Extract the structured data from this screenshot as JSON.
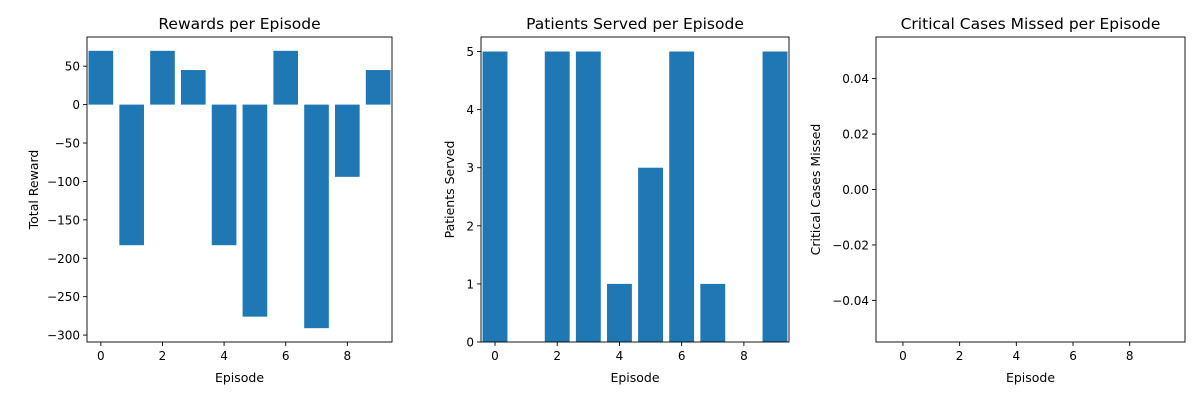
{
  "colors": {
    "bar": "#1f77b4",
    "axis": "#000000",
    "background": "#ffffff"
  },
  "chart_data": [
    {
      "type": "bar",
      "title": "Rewards per Episode",
      "xlabel": "Episode",
      "ylabel": "Total Reward",
      "x": [
        0,
        1,
        2,
        3,
        4,
        5,
        6,
        7,
        8,
        9
      ],
      "values": [
        70,
        -183,
        70,
        45,
        -183,
        -276,
        70,
        -291,
        -94,
        45
      ],
      "xlim": [
        -0.45,
        9.45
      ],
      "ylim": [
        -309,
        88
      ],
      "xticks": [
        0,
        2,
        4,
        6,
        8
      ],
      "yticks": [
        50,
        0,
        -50,
        -100,
        -150,
        -200,
        -250,
        -300
      ],
      "ytick_labels": [
        "50",
        "0",
        "−50",
        "−100",
        "−150",
        "−200",
        "−250",
        "−300"
      ],
      "grid": false
    },
    {
      "type": "bar",
      "title": "Patients Served per Episode",
      "xlabel": "Episode",
      "ylabel": "Patients Served",
      "x": [
        0,
        1,
        2,
        3,
        4,
        5,
        6,
        7,
        8,
        9
      ],
      "values": [
        5,
        0,
        5,
        5,
        1,
        3,
        5,
        1,
        0,
        5
      ],
      "xlim": [
        -0.45,
        9.45
      ],
      "ylim": [
        0,
        5.25
      ],
      "xticks": [
        0,
        2,
        4,
        6,
        8
      ],
      "yticks": [
        0,
        1,
        2,
        3,
        4,
        5
      ],
      "ytick_labels": [
        "0",
        "1",
        "2",
        "3",
        "4",
        "5"
      ],
      "grid": false
    },
    {
      "type": "bar",
      "title": "Critical Cases Missed per Episode",
      "xlabel": "Episode",
      "ylabel": "Critical Cases Missed",
      "x": [
        0,
        1,
        2,
        3,
        4,
        5,
        6,
        7,
        8,
        9
      ],
      "values": [
        0,
        0,
        0,
        0,
        0,
        0,
        0,
        0,
        0,
        0
      ],
      "xlim": [
        -0.95,
        9.95
      ],
      "ylim": [
        -0.055,
        0.055
      ],
      "xticks": [
        0,
        2,
        4,
        6,
        8
      ],
      "yticks": [
        0.04,
        0.02,
        0,
        -0.02,
        -0.04
      ],
      "ytick_labels": [
        "0.04",
        "0.02",
        "0.00",
        "−0.02",
        "−0.04"
      ],
      "grid": false
    }
  ]
}
